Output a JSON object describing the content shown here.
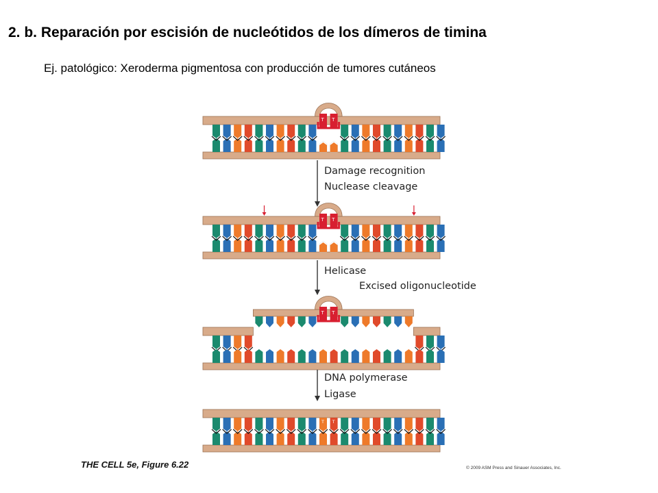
{
  "title": "2. b. Reparación por escisión de nucleótidos de los dímeros de timina",
  "subtitle": "Ej. patológico: Xeroderma pigmentosa con producción de tumores cutáneos",
  "steps": {
    "s1": [
      "Damage recognition",
      "Nuclease cleavage"
    ],
    "s2": [
      "Helicase"
    ],
    "s2b": "Excised oligonucleotide",
    "s3": [
      "DNA polymerase",
      "Ligase"
    ]
  },
  "dimer_label": "T T",
  "credit": "THE CELL 5e, Figure 6.22",
  "copyright": "© 2009 ASM Press and Sinauer Associates, Inc.",
  "colors": {
    "backbone": "#d8ab8a",
    "teal": "#1b8a6e",
    "blue": "#2a6fb5",
    "orange": "#ee7a2a",
    "red": "#e04a2b",
    "damage_red": "#d81f30",
    "arrow": "#333333"
  },
  "icons": [
    "down-arrow-icon",
    "cleavage-site-icon",
    "thymine-dimer-icon"
  ]
}
